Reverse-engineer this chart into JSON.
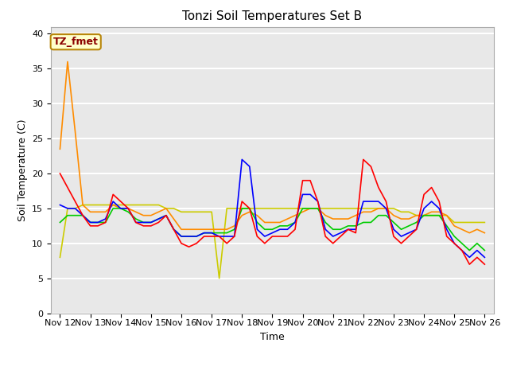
{
  "title": "Tonzi Soil Temperatures Set B",
  "xlabel": "Time",
  "ylabel": "Soil Temperature (C)",
  "ylim": [
    0,
    41
  ],
  "yticks": [
    0,
    5,
    10,
    15,
    20,
    25,
    30,
    35,
    40
  ],
  "x_labels": [
    "Nov 12",
    "Nov 13",
    "Nov 14",
    "Nov 15",
    "Nov 16",
    "Nov 17",
    "Nov 18",
    "Nov 19",
    "Nov 20",
    "Nov 21",
    "Nov 22",
    "Nov 23",
    "Nov 24",
    "Nov 25",
    "Nov 26"
  ],
  "annotation_text": "TZ_fmet",
  "annotation_color": "#8B0000",
  "annotation_bg": "#FFFFCC",
  "annotation_border": "#B8860B",
  "series": {
    "-2cm": {
      "color": "#FF0000",
      "lw": 1.2
    },
    "-4cm": {
      "color": "#0000FF",
      "lw": 1.2
    },
    "-8cm": {
      "color": "#00CC00",
      "lw": 1.2
    },
    "-16cm": {
      "color": "#FF8C00",
      "lw": 1.2
    },
    "-32cm": {
      "color": "#CCCC00",
      "lw": 1.2
    }
  },
  "bg_color": "#E8E8E8",
  "grid_color": "#FFFFFF",
  "data": {
    "x_num": [
      0,
      0.25,
      0.5,
      0.75,
      1,
      1.25,
      1.5,
      1.75,
      2,
      2.25,
      2.5,
      2.75,
      3,
      3.25,
      3.5,
      3.75,
      4,
      4.25,
      4.5,
      4.75,
      5,
      5.25,
      5.5,
      5.75,
      6,
      6.25,
      6.5,
      6.75,
      7,
      7.25,
      7.5,
      7.75,
      8,
      8.25,
      8.5,
      8.75,
      9,
      9.25,
      9.5,
      9.75,
      10,
      10.25,
      10.5,
      10.75,
      11,
      11.25,
      11.5,
      11.75,
      12,
      12.25,
      12.5,
      12.75,
      13,
      13.25,
      13.5,
      13.75,
      14
    ],
    "-2cm": [
      20,
      18,
      16,
      14,
      12.5,
      12.5,
      13,
      17,
      16,
      15,
      13,
      12.5,
      12.5,
      13,
      14,
      12,
      10,
      9.5,
      10,
      11,
      11,
      11,
      10,
      11,
      16,
      15,
      11,
      10,
      11,
      11,
      11,
      12,
      19,
      19,
      16,
      11,
      10,
      11,
      12,
      11.5,
      22,
      21,
      18,
      16,
      11,
      10,
      11,
      12,
      17,
      18,
      16,
      11,
      10,
      9,
      7,
      8,
      7
    ],
    "-4cm": [
      15.5,
      15,
      15,
      14,
      13,
      13,
      13.5,
      16,
      15,
      15,
      13,
      13,
      13,
      13.5,
      14,
      12,
      11,
      11,
      11,
      11.5,
      11.5,
      11,
      11,
      11,
      22,
      21,
      12,
      11,
      11.5,
      12,
      12,
      13,
      17,
      17,
      16,
      12,
      11,
      11.5,
      12,
      12,
      16,
      16,
      16,
      15,
      12,
      11,
      11.5,
      12,
      15,
      16,
      15,
      12,
      10,
      9,
      8,
      9,
      8
    ],
    "-8cm": [
      13,
      14,
      14,
      14,
      13,
      13,
      13,
      15,
      15,
      14.5,
      13.5,
      13,
      13,
      13.5,
      14,
      12,
      11,
      11,
      11,
      11.5,
      11.5,
      11.5,
      11.5,
      12,
      15,
      15,
      13,
      12,
      12,
      12.5,
      12.5,
      13,
      15,
      15,
      15,
      13,
      12,
      12,
      12.5,
      12.5,
      13,
      13,
      14,
      14,
      13,
      12,
      12.5,
      13,
      14,
      14,
      14,
      12.5,
      11,
      10,
      9,
      10,
      9
    ],
    "-16cm": [
      23.5,
      36,
      26,
      15.5,
      14.5,
      14.5,
      14.5,
      15.5,
      15,
      15,
      14.5,
      14,
      14,
      14.5,
      15,
      13.5,
      12,
      12,
      12,
      12,
      12,
      12,
      12,
      12.5,
      14,
      14.5,
      14,
      13,
      13,
      13,
      13.5,
      14,
      14.5,
      15,
      15,
      14,
      13.5,
      13.5,
      13.5,
      14,
      14.5,
      14.5,
      15,
      15,
      14,
      13.5,
      13.5,
      14,
      14,
      14.5,
      14.5,
      14,
      12.5,
      12,
      11.5,
      12,
      11.5
    ],
    "-32cm": [
      8,
      15,
      15,
      15.5,
      15.5,
      15.5,
      15.5,
      15.5,
      15.5,
      15.5,
      15.5,
      15.5,
      15.5,
      15.5,
      15,
      15,
      14.5,
      14.5,
      14.5,
      14.5,
      14.5,
      5,
      15,
      15,
      15,
      15,
      15,
      15,
      15,
      15,
      15,
      15,
      15,
      15,
      15,
      15,
      15,
      15,
      15,
      15,
      15,
      15,
      15,
      15,
      15,
      14.5,
      14.5,
      14,
      14,
      14,
      14,
      14,
      13,
      13,
      13,
      13,
      13
    ]
  }
}
